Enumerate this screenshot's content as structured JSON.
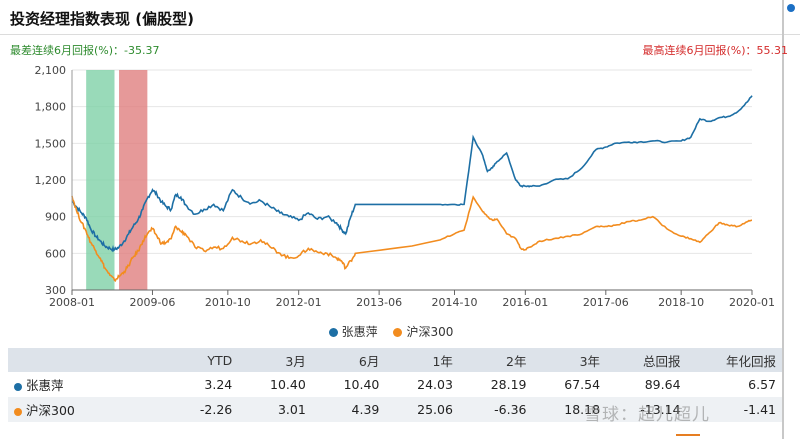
{
  "title": "投资经理指数表现 (偏股型)",
  "min_return": {
    "label": "最差连续6月回报(%)：",
    "value": "-35.37"
  },
  "max_return": {
    "label": "最高连续6月回报(%)：",
    "value": "55.31"
  },
  "watermark": "雪球：超儿超儿",
  "colors": {
    "manager": "#1d6fa5",
    "index": "#f28c1f",
    "green_band": "#7fd1a8",
    "red_band": "#e08080"
  },
  "chart_data": {
    "type": "line",
    "title": "投资经理指数表现 (偏股型)",
    "xlim": [
      2008.0,
      2020.0
    ],
    "ylim": [
      300,
      2100
    ],
    "yticks": [
      300,
      600,
      900,
      1200,
      1500,
      1800,
      2100
    ],
    "ytick_labels": [
      "300",
      "600",
      "900",
      "1,200",
      "1,500",
      "1,800",
      "2,100"
    ],
    "xticks": [
      2008.0,
      2009.42,
      2010.75,
      2012.0,
      2013.42,
      2014.75,
      2016.0,
      2017.42,
      2018.75,
      2020.0
    ],
    "xtick_labels": [
      "2008-01",
      "2009-06",
      "2010-10",
      "2012-01",
      "2013-06",
      "2014-10",
      "2016-01",
      "2017-06",
      "2018-10",
      "2020-01"
    ],
    "bands": [
      {
        "name": "worst-6m",
        "start": 2008.25,
        "end": 2008.75,
        "color": "green"
      },
      {
        "name": "best-6m",
        "start": 2008.83,
        "end": 2009.33,
        "color": "red"
      }
    ],
    "series": [
      {
        "name": "张惠萍",
        "color": "#1d6fa5",
        "x": [
          2008.0,
          2008.08,
          2008.17,
          2008.25,
          2008.33,
          2008.42,
          2008.5,
          2008.58,
          2008.67,
          2008.75,
          2008.83,
          2008.92,
          2009.0,
          2009.08,
          2009.17,
          2009.25,
          2009.33,
          2009.42,
          2009.5,
          2009.58,
          2009.67,
          2009.75,
          2009.83,
          2009.92,
          2010.0,
          2010.17,
          2010.33,
          2010.5,
          2010.67,
          2010.83,
          2011.0,
          2011.17,
          2011.33,
          2011.5,
          2011.67,
          2011.83,
          2012.0,
          2012.17,
          2012.33,
          2012.5,
          2012.67,
          2012.75,
          2012.83,
          2012.92,
          2013.0,
          2013.5,
          2014.0,
          2014.5,
          2014.75,
          2014.92,
          2015.08,
          2015.25,
          2015.33,
          2015.42,
          2015.5,
          2015.67,
          2015.83,
          2015.92,
          2016.0,
          2016.08,
          2016.25,
          2016.5,
          2016.75,
          2017.0,
          2017.25,
          2017.42,
          2017.58,
          2017.83,
          2018.0,
          2018.25,
          2018.5,
          2018.75,
          2018.92,
          2019.08,
          2019.25,
          2019.42,
          2019.58,
          2019.75,
          2019.92,
          2020.0
        ],
        "values": [
          1030,
          980,
          930,
          890,
          800,
          740,
          700,
          660,
          640,
          630,
          650,
          700,
          760,
          820,
          880,
          960,
          1050,
          1120,
          1080,
          1020,
          980,
          960,
          1080,
          1060,
          1000,
          920,
          960,
          1000,
          950,
          1120,
          1050,
          1010,
          1030,
          980,
          930,
          900,
          870,
          930,
          880,
          900,
          850,
          800,
          760,
          900,
          1000,
          1000,
          1000,
          1000,
          1000,
          1000,
          1550,
          1400,
          1270,
          1300,
          1350,
          1420,
          1200,
          1150,
          1150,
          1150,
          1150,
          1200,
          1210,
          1300,
          1450,
          1470,
          1500,
          1510,
          1510,
          1520,
          1510,
          1520,
          1550,
          1700,
          1680,
          1710,
          1720,
          1760,
          1840,
          1890
        ]
      },
      {
        "name": "沪深300",
        "color": "#f28c1f",
        "x": [
          2008.0,
          2008.08,
          2008.17,
          2008.25,
          2008.33,
          2008.42,
          2008.5,
          2008.58,
          2008.67,
          2008.75,
          2008.83,
          2008.92,
          2009.0,
          2009.08,
          2009.17,
          2009.25,
          2009.33,
          2009.42,
          2009.5,
          2009.58,
          2009.67,
          2009.75,
          2009.83,
          2009.92,
          2010.0,
          2010.17,
          2010.33,
          2010.5,
          2010.67,
          2010.83,
          2011.0,
          2011.17,
          2011.33,
          2011.5,
          2011.67,
          2011.83,
          2012.0,
          2012.17,
          2012.33,
          2012.5,
          2012.67,
          2012.75,
          2012.83,
          2012.92,
          2013.0,
          2013.5,
          2014.0,
          2014.5,
          2014.75,
          2014.92,
          2015.08,
          2015.25,
          2015.33,
          2015.42,
          2015.5,
          2015.67,
          2015.83,
          2015.92,
          2016.0,
          2016.08,
          2016.25,
          2016.5,
          2016.75,
          2017.0,
          2017.25,
          2017.42,
          2017.58,
          2017.83,
          2018.0,
          2018.25,
          2018.5,
          2018.75,
          2018.92,
          2019.08,
          2019.25,
          2019.42,
          2019.58,
          2019.75,
          2019.92,
          2020.0
        ],
        "values": [
          1070,
          950,
          850,
          780,
          690,
          620,
          560,
          480,
          420,
          380,
          410,
          450,
          500,
          570,
          620,
          700,
          760,
          800,
          740,
          680,
          690,
          720,
          820,
          780,
          760,
          650,
          620,
          650,
          640,
          730,
          700,
          680,
          710,
          650,
          600,
          560,
          580,
          640,
          610,
          600,
          560,
          540,
          480,
          540,
          600,
          630,
          660,
          710,
          760,
          790,
          1060,
          940,
          900,
          870,
          880,
          760,
          720,
          640,
          630,
          650,
          700,
          720,
          740,
          760,
          820,
          820,
          830,
          860,
          870,
          900,
          800,
          740,
          720,
          690,
          770,
          850,
          830,
          820,
          860,
          870
        ]
      }
    ]
  },
  "legend": [
    {
      "label": "张惠萍",
      "color": "#1d6fa5"
    },
    {
      "label": "沪深300",
      "color": "#f28c1f"
    }
  ],
  "table": {
    "headers": [
      "",
      "YTD",
      "3月",
      "6月",
      "1年",
      "2年",
      "3年",
      "总回报",
      "年化回报"
    ],
    "rows": [
      {
        "name": "张惠萍",
        "color": "#1d6fa5",
        "values": [
          "3.24",
          "10.40",
          "10.40",
          "24.03",
          "28.19",
          "67.54",
          "89.64",
          "6.57"
        ]
      },
      {
        "name": "沪深300",
        "color": "#f28c1f",
        "values": [
          "-2.26",
          "3.01",
          "4.39",
          "25.06",
          "-6.36",
          "18.18",
          "-13.14",
          "-1.41"
        ]
      }
    ]
  }
}
